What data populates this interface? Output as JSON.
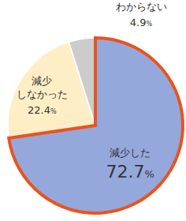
{
  "chart_data": {
    "type": "pie",
    "categories": [
      "減少した",
      "減少\nしなかった",
      "わからない"
    ],
    "values": [
      72.7,
      22.4,
      4.9
    ],
    "value_labels": [
      "72.7%",
      "22.4%",
      "4.9%"
    ],
    "colors": [
      "#95a8dc",
      "#fdeec6",
      "#cccccc"
    ],
    "data_labels": true
  }
}
